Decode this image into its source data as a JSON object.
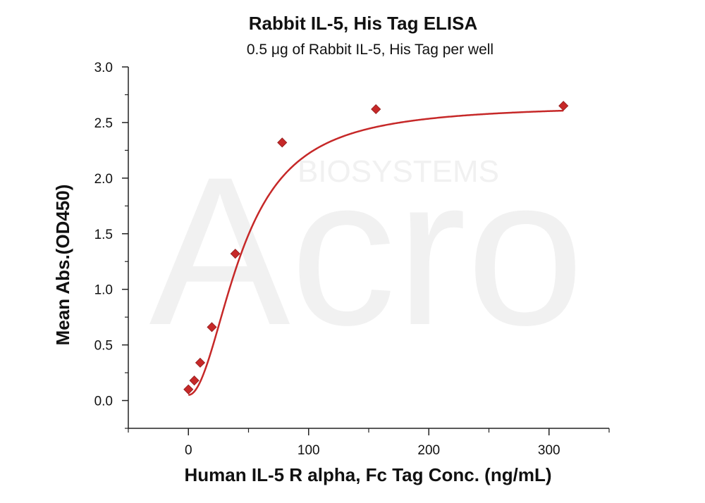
{
  "chart_data": {
    "type": "scatter",
    "title": "Rabbit IL-5, His Tag ELISA",
    "subtitle": "0.5 μg of Rabbit IL-5, His Tag per well",
    "xlabel": "Human IL-5 R alpha, Fc Tag Conc. (ng/mL)",
    "ylabel": "Mean Abs.(OD450)",
    "xlim": [
      -50,
      350
    ],
    "ylim": [
      -0.25,
      3.0
    ],
    "x_ticks": [
      0,
      100,
      200,
      300
    ],
    "x_tick_labels": [
      "0",
      "100",
      "200",
      "300"
    ],
    "y_ticks": [
      0.0,
      0.5,
      1.0,
      1.5,
      2.0,
      2.5,
      3.0
    ],
    "y_tick_labels": [
      "0.0",
      "0.5",
      "1.0",
      "1.5",
      "2.0",
      "2.5",
      "3.0"
    ],
    "grid": false,
    "legend": "none",
    "series": [
      {
        "marker": "diamond",
        "color": "#c62828",
        "x": [
          0,
          4.9,
          9.8,
          19.5,
          39,
          78,
          156,
          312
        ],
        "y": [
          0.1,
          0.18,
          0.34,
          0.66,
          1.32,
          2.32,
          2.62,
          2.65
        ],
        "fit": {
          "type": "4PL",
          "bottom": 0.05,
          "top": 2.66,
          "ec50": 45,
          "hill": 2.0,
          "color": "#c62828"
        }
      }
    ]
  },
  "watermark": {
    "brand": "Acro",
    "sub": "BIOSYSTEMS"
  }
}
